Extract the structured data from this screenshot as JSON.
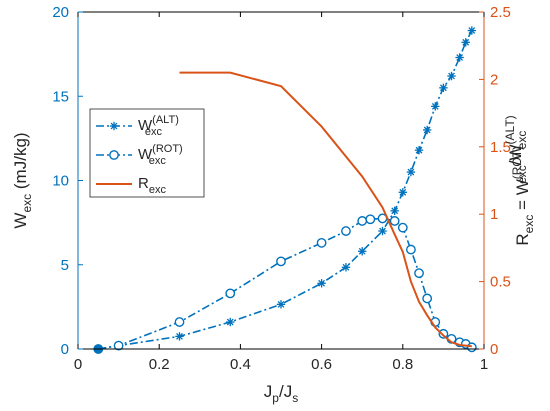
{
  "chart_data": {
    "type": "line",
    "grid": false,
    "legend_placement": "upper-left",
    "xlabel": {
      "main": "J",
      "sub1": "p",
      "mid": "/J",
      "sub2": "s"
    },
    "ylabel_left": {
      "main": "W",
      "sub": "exc",
      "rest": " (mJ/kg)"
    },
    "ylabel_right": {
      "main": "R",
      "sub1": "exc",
      "eq": " = W",
      "sup1": "(ROT)",
      "sub2": "exc",
      "slash": "/W",
      "sup2": "(ALT)",
      "sub3": "exc"
    },
    "x_axis": {
      "min": 0,
      "max": 1,
      "ticks": [
        "0",
        "0.2",
        "0.4",
        "0.6",
        "0.8",
        "1"
      ],
      "tick_values": [
        0,
        0.2,
        0.4,
        0.6,
        0.8,
        1
      ]
    },
    "y_left_axis": {
      "min": 0,
      "max": 20,
      "ticks": [
        "0",
        "5",
        "10",
        "15",
        "20"
      ],
      "tick_values": [
        0,
        5,
        10,
        15,
        20
      ]
    },
    "y_right_axis": {
      "min": 0,
      "max": 2.5,
      "ticks": [
        "0",
        "0.5",
        "1",
        "1.5",
        "2",
        "2.5"
      ],
      "tick_values": [
        0,
        0.5,
        1,
        1.5,
        2,
        2.5
      ]
    },
    "colors": {
      "blue": "#0072BD",
      "orange": "#D95319",
      "axis_left": "#0072BD",
      "axis_right": "#D95319",
      "box": "#000000"
    },
    "series": [
      {
        "name_main": "W",
        "name_sub": "exc",
        "name_sup": "(ALT)",
        "axis": "left",
        "marker": "asterisk",
        "line": "dash-dot",
        "color": "#0072BD",
        "x": [
          0.05,
          0.1,
          0.25,
          0.375,
          0.5,
          0.6,
          0.66,
          0.7,
          0.75,
          0.78,
          0.8,
          0.82,
          0.84,
          0.86,
          0.88,
          0.9,
          0.92,
          0.94,
          0.955,
          0.97
        ],
        "y": [
          0.0,
          0.2,
          0.75,
          1.6,
          2.65,
          3.9,
          4.85,
          5.8,
          7.0,
          8.2,
          9.3,
          10.5,
          11.8,
          13.0,
          14.4,
          15.5,
          16.2,
          17.3,
          18.2,
          18.9
        ]
      },
      {
        "name_main": "W",
        "name_sub": "exc",
        "name_sup": "(ROT)",
        "axis": "left",
        "marker": "circle",
        "line": "dash-dot",
        "color": "#0072BD",
        "x": [
          0.05,
          0.1,
          0.25,
          0.375,
          0.5,
          0.6,
          0.66,
          0.7,
          0.72,
          0.75,
          0.78,
          0.8,
          0.82,
          0.84,
          0.86,
          0.88,
          0.9,
          0.92,
          0.94,
          0.955,
          0.97
        ],
        "y": [
          0.0,
          0.2,
          1.6,
          3.3,
          5.2,
          6.3,
          7.0,
          7.6,
          7.7,
          7.75,
          7.6,
          7.2,
          5.9,
          4.5,
          3.0,
          1.6,
          0.9,
          0.6,
          0.4,
          0.3,
          0.1
        ]
      },
      {
        "name_main": "R",
        "name_sub": "exc",
        "name_sup": "",
        "axis": "right",
        "marker": "none",
        "line": "solid",
        "color": "#D95319",
        "x": [
          0.25,
          0.375,
          0.5,
          0.6,
          0.7,
          0.75,
          0.78,
          0.8,
          0.82,
          0.84,
          0.86,
          0.88,
          0.9,
          0.92,
          0.94,
          0.97
        ],
        "y": [
          2.05,
          2.05,
          1.95,
          1.65,
          1.28,
          1.05,
          0.85,
          0.72,
          0.5,
          0.35,
          0.25,
          0.16,
          0.1,
          0.05,
          0.03,
          0.02
        ]
      }
    ]
  }
}
